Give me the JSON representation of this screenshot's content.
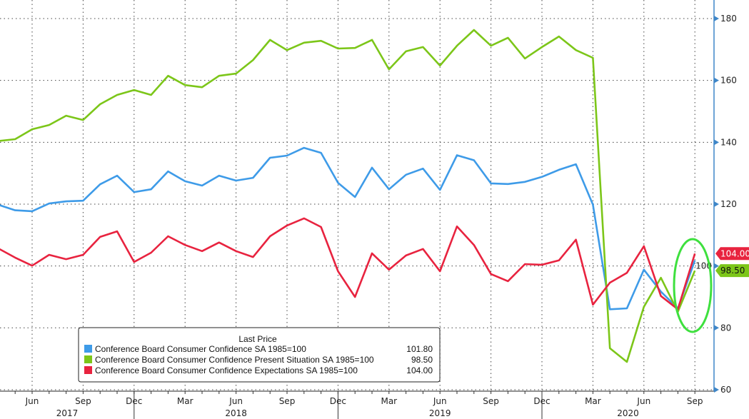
{
  "chart_data": {
    "type": "line",
    "x_start": "2017-04",
    "x_tick_labels": [
      "Jun",
      "Sep",
      "Dec",
      "Mar",
      "Jun",
      "Sep",
      "Dec",
      "Mar",
      "Jun",
      "Sep",
      "Dec",
      "Mar",
      "Jun",
      "Sep"
    ],
    "year_labels": [
      "2017",
      "2018",
      "2019",
      "2020"
    ],
    "y_ticks": [
      "60",
      "80",
      "100",
      "120",
      "140",
      "160",
      "180"
    ],
    "ylim": [
      58,
      184
    ],
    "y_axis_side": "right",
    "grid": true,
    "legend": {
      "title": "Last Price",
      "placement": "bottom-left"
    },
    "series": [
      {
        "name": "Conference Board Consumer Confidence SA 1985=100",
        "last": "101.80",
        "color": "#3e9be8",
        "values": [
          119.8,
          118,
          117.7,
          120.2,
          120.9,
          121.1,
          126.4,
          129.2,
          123.9,
          124.8,
          130.6,
          127.4,
          126,
          129.2,
          127.6,
          128.5,
          135,
          135.7,
          138.2,
          136.6,
          126.9,
          122.3,
          131.8,
          124.8,
          129.5,
          131.5,
          124.6,
          135.8,
          134.2,
          126.7,
          126.5,
          127.2,
          128.8,
          131.1,
          132.9,
          119.8,
          86,
          86.3,
          98.8,
          91.7,
          86.3,
          101.8
        ]
      },
      {
        "name": "Conference Board Consumer Confidence Present Situation SA 1985=100",
        "last": "98.50",
        "color": "#7cc619",
        "values": [
          140.4,
          141,
          144.2,
          145.6,
          148.6,
          147.2,
          152.3,
          155.3,
          156.9,
          155.3,
          161.5,
          158.5,
          157.8,
          161.5,
          162.2,
          166.6,
          173.1,
          169.8,
          172.2,
          172.8,
          170.3,
          170.5,
          173.1,
          163.6,
          169.4,
          170.8,
          164.8,
          171.2,
          176.3,
          171.2,
          173.8,
          167.1,
          170.8,
          174.2,
          169.8,
          167.3,
          73.4,
          69,
          86.8,
          96.2,
          85.2,
          98.5
        ]
      },
      {
        "name": "Conference Board Consumer Confidence Expectations SA 1985=100",
        "last": "104.00",
        "color": "#e8233f",
        "values": [
          105.7,
          102.7,
          100.1,
          103.6,
          102.2,
          103.6,
          109.4,
          111.2,
          101.3,
          104.3,
          109.6,
          106.8,
          104.8,
          107.6,
          104.8,
          102.9,
          109.6,
          113.1,
          115.4,
          112.6,
          98.3,
          90,
          104.1,
          98.8,
          103.4,
          105.5,
          98.3,
          112.8,
          106.8,
          97.4,
          95.1,
          100.6,
          100.4,
          101.8,
          108.5,
          87.5,
          94.6,
          97.8,
          106.4,
          90.3,
          86,
          104
        ]
      }
    ],
    "last_value_tags": [
      "104.00",
      "98.50"
    ],
    "annotation": "green ellipse around Sep 2020 values"
  }
}
